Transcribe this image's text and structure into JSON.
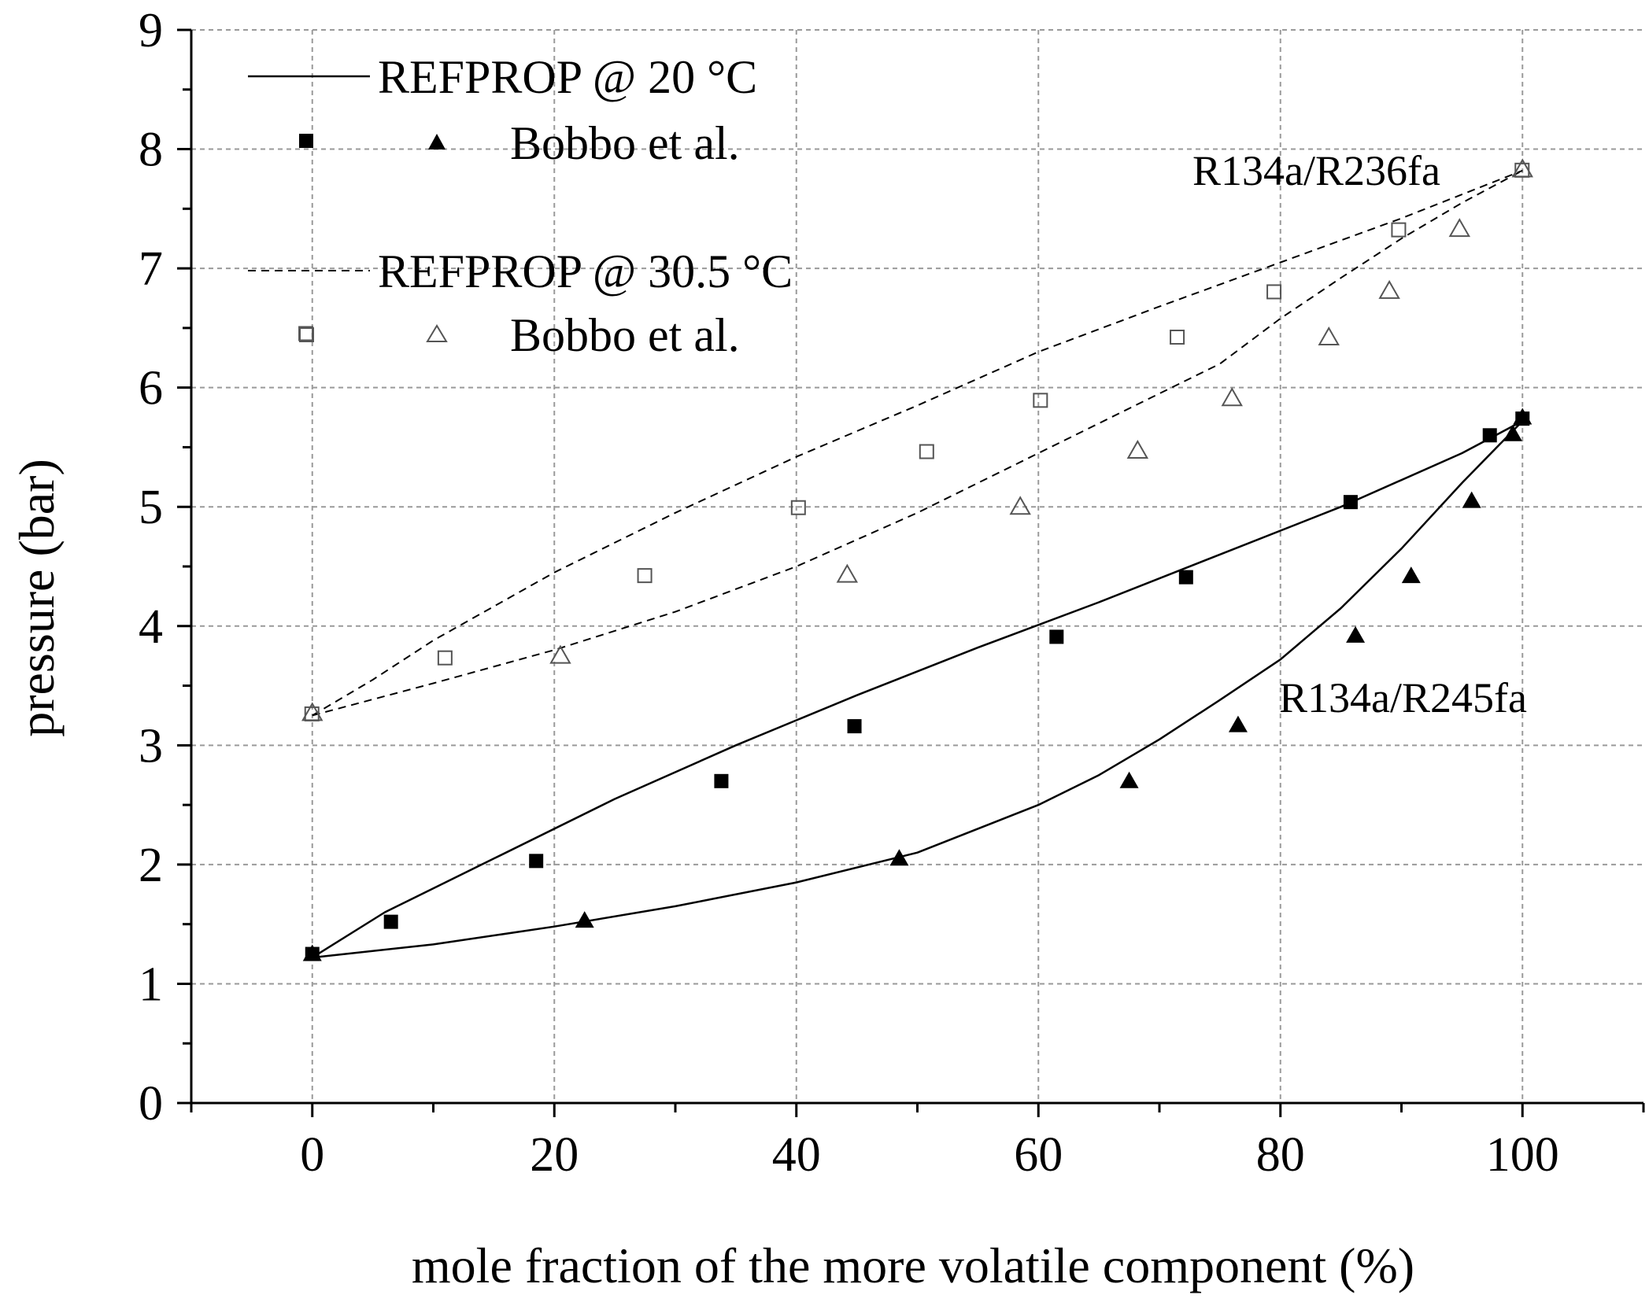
{
  "chart_data": {
    "type": "scatter",
    "xlabel": "mole fraction of the more volatile component  (%)",
    "ylabel": "pressure (bar)",
    "xlim": [
      -10,
      110
    ],
    "ylim": [
      0,
      9
    ],
    "x_ticks": [
      0,
      20,
      40,
      60,
      80,
      100
    ],
    "y_ticks": [
      0,
      1,
      2,
      3,
      4,
      5,
      6,
      7,
      8,
      9
    ],
    "grid": true,
    "legend_position": "top-left",
    "legend": {
      "line_20_label": "REFPROP @ 20 °C",
      "points_20_label": "Bobbo et al.",
      "line_30_label": "REFPROP @ 30.5 °C",
      "points_30_label": "Bobbo et al."
    },
    "annotations": [
      {
        "text": "R134a/R236fa",
        "x": 88,
        "y": 7.8
      },
      {
        "text": "R134a/R245fa",
        "x": 93,
        "y": 3.4
      }
    ],
    "lines": [
      {
        "style": "solid",
        "points": [
          [
            0,
            1.22
          ],
          [
            6,
            1.6
          ],
          [
            15,
            2.05
          ],
          [
            25,
            2.55
          ],
          [
            35,
            3.0
          ],
          [
            45,
            3.42
          ],
          [
            55,
            3.82
          ],
          [
            65,
            4.2
          ],
          [
            75,
            4.6
          ],
          [
            85,
            5.0
          ],
          [
            95,
            5.45
          ],
          [
            100,
            5.72
          ]
        ]
      },
      {
        "style": "solid",
        "points": [
          [
            0,
            1.22
          ],
          [
            10,
            1.33
          ],
          [
            20,
            1.48
          ],
          [
            30,
            1.65
          ],
          [
            40,
            1.85
          ],
          [
            50,
            2.1
          ],
          [
            60,
            2.5
          ],
          [
            65,
            2.75
          ],
          [
            70,
            3.05
          ],
          [
            75,
            3.38
          ],
          [
            80,
            3.72
          ],
          [
            85,
            4.15
          ],
          [
            90,
            4.65
          ],
          [
            95,
            5.2
          ],
          [
            100,
            5.72
          ]
        ]
      },
      {
        "style": "dashed",
        "points": [
          [
            0,
            3.25
          ],
          [
            5,
            3.55
          ],
          [
            10,
            3.88
          ],
          [
            20,
            4.45
          ],
          [
            30,
            4.95
          ],
          [
            40,
            5.42
          ],
          [
            50,
            5.85
          ],
          [
            60,
            6.3
          ],
          [
            70,
            6.68
          ],
          [
            80,
            7.05
          ],
          [
            90,
            7.42
          ],
          [
            100,
            7.82
          ]
        ]
      },
      {
        "style": "dashed",
        "points": [
          [
            0,
            3.25
          ],
          [
            10,
            3.52
          ],
          [
            20,
            3.8
          ],
          [
            30,
            4.12
          ],
          [
            40,
            4.5
          ],
          [
            50,
            4.95
          ],
          [
            60,
            5.45
          ],
          [
            70,
            5.95
          ],
          [
            75,
            6.2
          ],
          [
            80,
            6.58
          ],
          [
            85,
            6.92
          ],
          [
            90,
            7.25
          ],
          [
            95,
            7.55
          ],
          [
            100,
            7.82
          ]
        ]
      }
    ],
    "series": [
      {
        "marker": "filled-square",
        "points": [
          [
            0,
            1.25
          ],
          [
            6.5,
            1.52
          ],
          [
            18.5,
            2.03
          ],
          [
            33.8,
            2.7
          ],
          [
            44.8,
            3.16
          ],
          [
            61.5,
            3.91
          ],
          [
            72.2,
            4.41
          ],
          [
            85.8,
            5.04
          ],
          [
            97.3,
            5.6
          ],
          [
            100,
            5.74
          ]
        ]
      },
      {
        "marker": "filled-triangle",
        "points": [
          [
            0,
            1.25
          ],
          [
            22.5,
            1.53
          ],
          [
            48.5,
            2.05
          ],
          [
            67.5,
            2.7
          ],
          [
            76.5,
            3.17
          ],
          [
            86.2,
            3.92
          ],
          [
            90.8,
            4.42
          ],
          [
            95.8,
            5.05
          ],
          [
            99.2,
            5.61
          ],
          [
            100,
            5.75
          ]
        ]
      },
      {
        "marker": "open-square",
        "points": [
          [
            -0.5,
            6.45
          ],
          [
            0,
            3.26
          ],
          [
            11,
            3.73
          ],
          [
            27.5,
            4.42
          ],
          [
            40.2,
            4.99
          ],
          [
            50.8,
            5.46
          ],
          [
            60.2,
            5.89
          ],
          [
            71.5,
            6.42
          ],
          [
            79.5,
            6.8
          ],
          [
            89.8,
            7.32
          ],
          [
            100,
            7.82
          ]
        ]
      },
      {
        "marker": "open-triangle",
        "points": [
          [
            0,
            3.27
          ],
          [
            20.5,
            3.75
          ],
          [
            44.2,
            4.43
          ],
          [
            58.5,
            5.0
          ],
          [
            68.2,
            5.47
          ],
          [
            76,
            5.91
          ],
          [
            84,
            6.42
          ],
          [
            89,
            6.81
          ],
          [
            94.8,
            7.33
          ],
          [
            100,
            7.83
          ]
        ]
      }
    ]
  }
}
